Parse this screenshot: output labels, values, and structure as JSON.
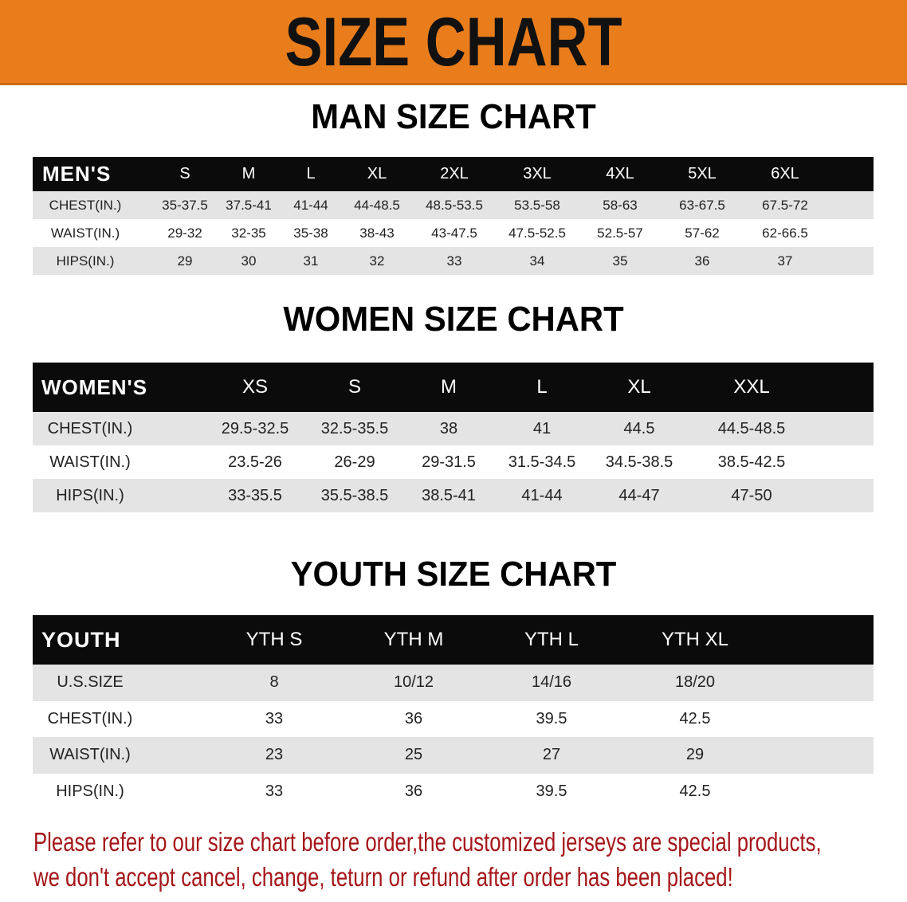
{
  "banner": {
    "title": "SIZE CHART",
    "color": "#e97d1c"
  },
  "men": {
    "title": "MAN SIZE CHART",
    "header": [
      "MEN'S",
      "S",
      "M",
      "L",
      "XL",
      "2XL",
      "3XL",
      "4XL",
      "5XL",
      "6XL"
    ],
    "rows": [
      [
        "CHEST(IN.)",
        "35-37.5",
        "37.5-41",
        "41-44",
        "44-48.5",
        "48.5-53.5",
        "53.5-58",
        "58-63",
        "63-67.5",
        "67.5-72"
      ],
      [
        "WAIST(IN.)",
        "29-32",
        "32-35",
        "35-38",
        "38-43",
        "43-47.5",
        "47.5-52.5",
        "52.5-57",
        "57-62",
        "62-66.5"
      ],
      [
        "HIPS(IN.)",
        "29",
        "30",
        "31",
        "32",
        "33",
        "34",
        "35",
        "36",
        "37"
      ]
    ]
  },
  "women": {
    "title": "WOMEN SIZE CHART",
    "header": [
      "WOMEN'S",
      "XS",
      "S",
      "M",
      "L",
      "XL",
      "XXL"
    ],
    "rows": [
      [
        "CHEST(IN.)",
        "29.5-32.5",
        "32.5-35.5",
        "38",
        "41",
        "44.5",
        "44.5-48.5"
      ],
      [
        "WAIST(IN.)",
        "23.5-26",
        "26-29",
        "29-31.5",
        "31.5-34.5",
        "34.5-38.5",
        "38.5-42.5"
      ],
      [
        "HIPS(IN.)",
        "33-35.5",
        "35.5-38.5",
        "38.5-41",
        "41-44",
        "44-47",
        "47-50"
      ]
    ]
  },
  "youth": {
    "title": "YOUTH SIZE CHART",
    "header": [
      "YOUTH",
      "YTH S",
      "YTH M",
      "YTH L",
      "YTH XL"
    ],
    "rows": [
      [
        "U.S.SIZE",
        "8",
        "10/12",
        "14/16",
        "18/20"
      ],
      [
        "CHEST(IN.)",
        "33",
        "36",
        "39.5",
        "42.5"
      ],
      [
        "WAIST(IN.)",
        "23",
        "25",
        "27",
        "29"
      ],
      [
        "HIPS(IN.)",
        "33",
        "36",
        "39.5",
        "42.5"
      ]
    ]
  },
  "footer": {
    "line1": "Please refer to our size chart before order,the customized jerseys are special products,",
    "line2": "we don't accept cancel, change, teturn or refund after order has been placed!",
    "color": "#a4161a"
  }
}
